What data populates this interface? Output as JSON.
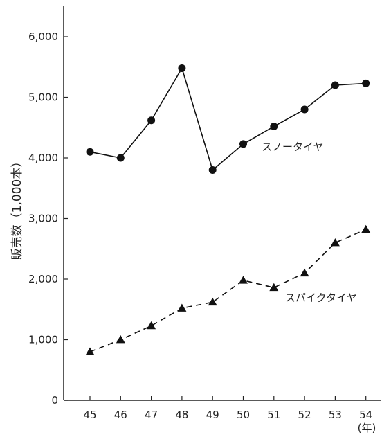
{
  "chart_data": {
    "type": "line",
    "title": "",
    "ylabel": "販売数（1,000本）",
    "xlabel": "(年)",
    "x": [
      "45",
      "46",
      "47",
      "48",
      "49",
      "50",
      "51",
      "52",
      "53",
      "54"
    ],
    "ylim": [
      0,
      6600
    ],
    "yticks": [
      "0",
      "1,000",
      "2,000",
      "3,000",
      "4,000",
      "5,000",
      "6,000"
    ],
    "series": [
      {
        "name": "スノータイヤ",
        "marker": "circle",
        "line": "solid",
        "values": [
          4100,
          4000,
          4620,
          5480,
          3800,
          4230,
          4520,
          4800,
          5200,
          5230
        ]
      },
      {
        "name": "スパイクタイヤ",
        "marker": "triangle",
        "line": "dashed",
        "values": [
          800,
          1000,
          1230,
          1520,
          1620,
          1980,
          1860,
          2100,
          2600,
          2820
        ]
      }
    ],
    "grid": false,
    "legend": "inline-labels"
  }
}
